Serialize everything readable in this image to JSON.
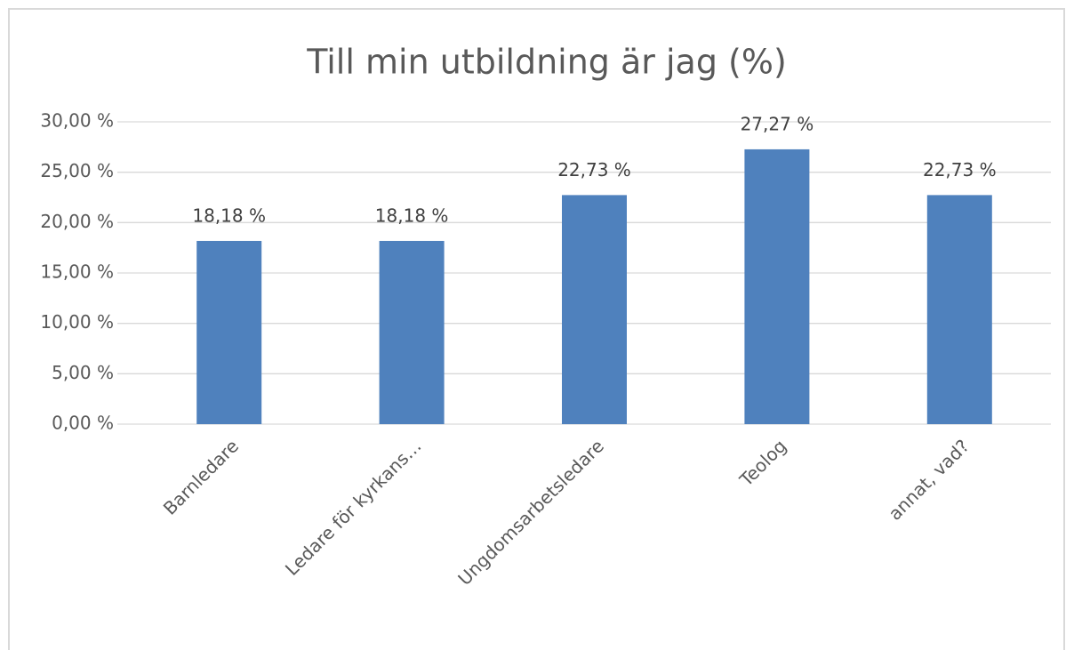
{
  "chart_data": {
    "type": "bar",
    "title": "Till min utbildning är jag (%)",
    "categories": [
      "Barnledare",
      "Ledare för kyrkans…",
      "Ungdomsarbetsledare",
      "Teolog",
      "annat, vad?"
    ],
    "values": [
      18.18,
      18.18,
      22.73,
      27.27,
      22.73
    ],
    "value_labels": [
      "18,18 %",
      "18,18 %",
      "22,73 %",
      "27,27 %",
      "22,73 %"
    ],
    "color": "#4f81bd",
    "ylim": [
      0,
      30
    ],
    "yticks": [
      {
        "value": 0,
        "label": "0,00 %"
      },
      {
        "value": 5,
        "label": "5,00 %"
      },
      {
        "value": 10,
        "label": "10,00 %"
      },
      {
        "value": 15,
        "label": "15,00 %"
      },
      {
        "value": 20,
        "label": "20,00 %"
      },
      {
        "value": 25,
        "label": "25,00 %"
      },
      {
        "value": 30,
        "label": "30,00 %"
      }
    ],
    "grid": true
  }
}
